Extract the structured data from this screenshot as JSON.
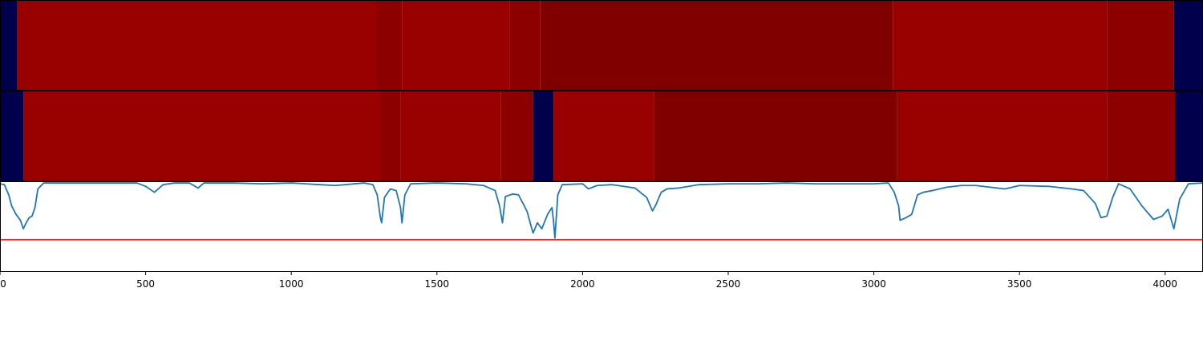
{
  "chart_data": {
    "type": "line",
    "xlim": [
      0,
      4130
    ],
    "x_ticks": [
      0,
      500,
      1000,
      1500,
      2000,
      2500,
      3000,
      3500,
      4000
    ],
    "x_tick_labels": [
      "0",
      "500",
      "1000",
      "1500",
      "2000",
      "2500",
      "3000",
      "3500",
      "4000"
    ],
    "segment_tracks": [
      {
        "segments": [
          {
            "start": 0,
            "end": 60,
            "color": "#00004c"
          },
          {
            "start": 60,
            "end": 1290,
            "color": "#990000"
          },
          {
            "start": 1290,
            "end": 1380,
            "color": "#8c0000"
          },
          {
            "start": 1380,
            "end": 1750,
            "color": "#990000"
          },
          {
            "start": 1750,
            "end": 1855,
            "color": "#8c0000"
          },
          {
            "start": 1855,
            "end": 3065,
            "color": "#800000"
          },
          {
            "start": 3065,
            "end": 3800,
            "color": "#990000"
          },
          {
            "start": 3800,
            "end": 4030,
            "color": "#8c0000"
          },
          {
            "start": 4030,
            "end": 4130,
            "color": "#00004c"
          }
        ]
      },
      {
        "segments": [
          {
            "start": 0,
            "end": 80,
            "color": "#00004c"
          },
          {
            "start": 80,
            "end": 1305,
            "color": "#990000"
          },
          {
            "start": 1305,
            "end": 1375,
            "color": "#8c0000"
          },
          {
            "start": 1375,
            "end": 1720,
            "color": "#990000"
          },
          {
            "start": 1720,
            "end": 1830,
            "color": "#8c0000"
          },
          {
            "start": 1830,
            "end": 1900,
            "color": "#00004c"
          },
          {
            "start": 1900,
            "end": 2245,
            "color": "#990000"
          },
          {
            "start": 2245,
            "end": 3080,
            "color": "#800000"
          },
          {
            "start": 3080,
            "end": 3800,
            "color": "#990000"
          },
          {
            "start": 3800,
            "end": 4035,
            "color": "#8c0000"
          },
          {
            "start": 4035,
            "end": 4130,
            "color": "#00004c"
          }
        ]
      }
    ],
    "ylim": [
      -0.05,
      1.0
    ],
    "series": [
      {
        "color": "#1f77b4",
        "points": [
          [
            0,
            0.98
          ],
          [
            15,
            0.97
          ],
          [
            30,
            0.85
          ],
          [
            40,
            0.72
          ],
          [
            55,
            0.62
          ],
          [
            70,
            0.55
          ],
          [
            80,
            0.45
          ],
          [
            90,
            0.52
          ],
          [
            100,
            0.58
          ],
          [
            110,
            0.6
          ],
          [
            120,
            0.7
          ],
          [
            130,
            0.92
          ],
          [
            150,
            0.99
          ],
          [
            300,
            0.99
          ],
          [
            400,
            0.99
          ],
          [
            470,
            0.99
          ],
          [
            500,
            0.95
          ],
          [
            530,
            0.88
          ],
          [
            560,
            0.97
          ],
          [
            600,
            0.99
          ],
          [
            650,
            0.99
          ],
          [
            680,
            0.93
          ],
          [
            700,
            0.99
          ],
          [
            760,
            0.99
          ],
          [
            800,
            0.99
          ],
          [
            900,
            0.98
          ],
          [
            1000,
            0.99
          ],
          [
            1100,
            0.97
          ],
          [
            1150,
            0.96
          ],
          [
            1250,
            0.99
          ],
          [
            1280,
            0.97
          ],
          [
            1295,
            0.85
          ],
          [
            1305,
            0.6
          ],
          [
            1310,
            0.52
          ],
          [
            1320,
            0.82
          ],
          [
            1340,
            0.92
          ],
          [
            1360,
            0.9
          ],
          [
            1375,
            0.7
          ],
          [
            1380,
            0.52
          ],
          [
            1390,
            0.85
          ],
          [
            1410,
            0.98
          ],
          [
            1500,
            0.99
          ],
          [
            1600,
            0.98
          ],
          [
            1660,
            0.96
          ],
          [
            1700,
            0.9
          ],
          [
            1715,
            0.72
          ],
          [
            1725,
            0.52
          ],
          [
            1735,
            0.83
          ],
          [
            1760,
            0.86
          ],
          [
            1780,
            0.85
          ],
          [
            1800,
            0.72
          ],
          [
            1810,
            0.65
          ],
          [
            1820,
            0.52
          ],
          [
            1830,
            0.4
          ],
          [
            1845,
            0.52
          ],
          [
            1860,
            0.45
          ],
          [
            1880,
            0.62
          ],
          [
            1895,
            0.7
          ],
          [
            1900,
            0.55
          ],
          [
            1905,
            0.34
          ],
          [
            1915,
            0.85
          ],
          [
            1930,
            0.97
          ],
          [
            2000,
            0.98
          ],
          [
            2020,
            0.92
          ],
          [
            2050,
            0.96
          ],
          [
            2100,
            0.97
          ],
          [
            2180,
            0.93
          ],
          [
            2220,
            0.82
          ],
          [
            2240,
            0.66
          ],
          [
            2250,
            0.72
          ],
          [
            2270,
            0.88
          ],
          [
            2290,
            0.92
          ],
          [
            2330,
            0.93
          ],
          [
            2400,
            0.97
          ],
          [
            2500,
            0.98
          ],
          [
            2600,
            0.98
          ],
          [
            2700,
            0.99
          ],
          [
            2800,
            0.98
          ],
          [
            2900,
            0.98
          ],
          [
            3000,
            0.98
          ],
          [
            3050,
            0.99
          ],
          [
            3070,
            0.88
          ],
          [
            3085,
            0.72
          ],
          [
            3090,
            0.55
          ],
          [
            3110,
            0.58
          ],
          [
            3130,
            0.62
          ],
          [
            3150,
            0.85
          ],
          [
            3170,
            0.88
          ],
          [
            3200,
            0.9
          ],
          [
            3250,
            0.94
          ],
          [
            3300,
            0.96
          ],
          [
            3350,
            0.96
          ],
          [
            3400,
            0.94
          ],
          [
            3450,
            0.92
          ],
          [
            3500,
            0.96
          ],
          [
            3600,
            0.95
          ],
          [
            3680,
            0.92
          ],
          [
            3720,
            0.9
          ],
          [
            3760,
            0.75
          ],
          [
            3780,
            0.58
          ],
          [
            3800,
            0.6
          ],
          [
            3820,
            0.82
          ],
          [
            3840,
            0.98
          ],
          [
            3880,
            0.92
          ],
          [
            3920,
            0.72
          ],
          [
            3960,
            0.56
          ],
          [
            3990,
            0.6
          ],
          [
            4010,
            0.68
          ],
          [
            4030,
            0.45
          ],
          [
            4050,
            0.8
          ],
          [
            4080,
            0.98
          ],
          [
            4130,
            0.99
          ]
        ]
      }
    ],
    "reference_lines": [
      {
        "y": 0.32,
        "color": "#ff0000"
      }
    ]
  }
}
